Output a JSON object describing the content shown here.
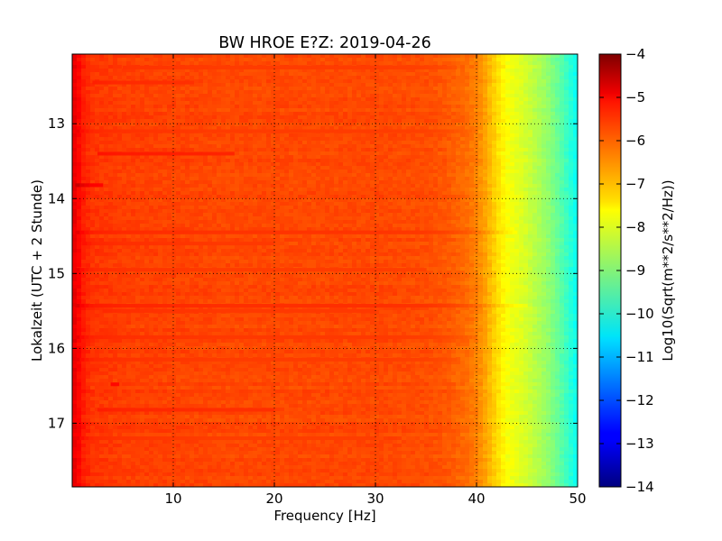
{
  "chart_data": {
    "type": "heatmap",
    "title": "BW HROE E?Z: 2019-04-26",
    "xlabel": "Frequency [Hz]",
    "ylabel": "Lokalzeit (UTC + 2 Stunde)",
    "xlim": [
      0,
      50
    ],
    "ylim": [
      17.85,
      12.07
    ],
    "x_ticks": [
      10,
      20,
      30,
      40,
      50
    ],
    "y_ticks": [
      13,
      14,
      15,
      16,
      17
    ],
    "grid": true,
    "colorbar": {
      "label": "Log10(Sqrt(m**2/s**2/Hz))",
      "colormap": "jet",
      "range": [
        -14,
        -4
      ],
      "ticks": [
        -4,
        -5,
        -6,
        -7,
        -8,
        -9,
        -10,
        -11,
        -12,
        -13,
        -14
      ]
    },
    "spectrum_profile": {
      "frequency_hz": [
        0,
        0.5,
        1,
        2,
        5,
        10,
        15,
        20,
        25,
        30,
        35,
        37,
        39,
        40,
        41,
        42,
        43,
        44,
        45,
        46,
        47,
        48,
        49,
        50
      ],
      "log10_amplitude": [
        -5.0,
        -5.2,
        -5.5,
        -5.75,
        -5.85,
        -5.9,
        -5.95,
        -5.95,
        -5.95,
        -5.95,
        -6.0,
        -6.1,
        -6.3,
        -6.5,
        -6.9,
        -7.4,
        -7.8,
        -8.0,
        -8.2,
        -8.5,
        -8.8,
        -9.2,
        -9.7,
        -10.2
      ]
    },
    "time_features": [
      {
        "time": 13.4,
        "fmin": 2.5,
        "fmax": 16,
        "delta": 0.35
      },
      {
        "time": 13.82,
        "fmin": 0.3,
        "fmax": 3,
        "delta": 0.5
      },
      {
        "time": 12.45,
        "fmin": 2,
        "fmax": 12,
        "delta": 0.2
      },
      {
        "time": 14.45,
        "fmin": 0.3,
        "fmax": 44,
        "delta": 0.2
      },
      {
        "time": 14.6,
        "fmin": 1,
        "fmax": 20,
        "delta": 0.15
      },
      {
        "time": 15.43,
        "fmin": 0.3,
        "fmax": 45,
        "delta": 0.25
      },
      {
        "time": 15.5,
        "fmin": 3,
        "fmax": 30,
        "delta": 0.15
      },
      {
        "time": 15.85,
        "fmin": 0.3,
        "fmax": 40,
        "delta": 0.15
      },
      {
        "time": 16.48,
        "fmin": 3.8,
        "fmax": 4.6,
        "delta": 0.5
      },
      {
        "time": 16.82,
        "fmin": 2.5,
        "fmax": 20,
        "delta": 0.25
      },
      {
        "time": 12.25,
        "fmin": 5,
        "fmax": 38,
        "delta": 0.12
      },
      {
        "time": 13.1,
        "fmin": 0.3,
        "fmax": 40,
        "delta": 0.12
      },
      {
        "time": 14.95,
        "fmin": 0.3,
        "fmax": 35,
        "delta": 0.12
      },
      {
        "time": 16.15,
        "fmin": 0.3,
        "fmax": 38,
        "delta": 0.12
      },
      {
        "time": 17.2,
        "fmin": 0.3,
        "fmax": 30,
        "delta": 0.1
      }
    ]
  }
}
